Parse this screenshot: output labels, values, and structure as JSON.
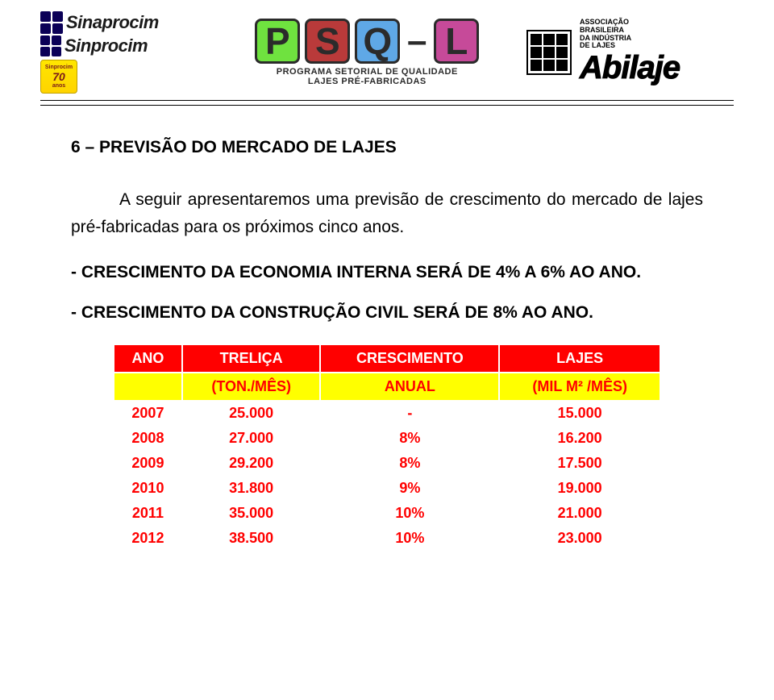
{
  "header": {
    "logos": {
      "sinaprocim": "Sinaprocim",
      "sinprocim": "Sinprocim",
      "anniv_label": "Sinprocim",
      "anniv_years": "70",
      "anniv_sub": "anos",
      "psql_letters": [
        "P",
        "S",
        "Q",
        "L"
      ],
      "psql_letter_colors": [
        "#6fe23f",
        "#b93a3a",
        "#5fa8e6",
        "#c64a99"
      ],
      "psql_sub1": "PROGRAMA SETORIAL DE QUALIDADE",
      "psql_sub2": "LAJES PRÉ-FABRICADAS",
      "abilaje_word": "Abilaje",
      "abilaje_assoc_lines": [
        "ASSOCIAÇÃO",
        "BRASILEIRA",
        "DA INDÚSTRIA",
        "DE LAJES"
      ]
    }
  },
  "section": {
    "title": "6 – PREVISÃO DO MERCADO DE LAJES",
    "paragraph": "A seguir apresentaremos uma previsão de crescimento do mercado de lajes pré-fabricadas para os próximos cinco anos.",
    "bullet1": "- CRESCIMENTO DA ECONOMIA INTERNA SERÁ DE 4% A 6% AO ANO.",
    "bullet2": "- CRESCIMENTO DA CONSTRUÇÃO CIVIL SERÁ DE 8% AO ANO."
  },
  "table": {
    "header_bg": "#ff0000",
    "header_color": "#ffffff",
    "subhead_bg": "#ffff00",
    "subhead_color": "#ff0000",
    "cell_color": "#ff0000",
    "columns_row1": [
      "ANO",
      "TRELIÇA",
      "CRESCIMENTO",
      "LAJES"
    ],
    "columns_row2": [
      "",
      "(TON./MÊS)",
      "ANUAL",
      "(MIL M² /MÊS)"
    ],
    "rows": [
      {
        "year": "2007",
        "trelica": "25.000",
        "cresc": "-",
        "lajes": "15.000"
      },
      {
        "year": "2008",
        "trelica": "27.000",
        "cresc": "8%",
        "lajes": "16.200"
      },
      {
        "year": "2009",
        "trelica": "29.200",
        "cresc": "8%",
        "lajes": "17.500"
      },
      {
        "year": "2010",
        "trelica": "31.800",
        "cresc": "9%",
        "lajes": "19.000"
      },
      {
        "year": "2011",
        "trelica": "35.000",
        "cresc": "10%",
        "lajes": "21.000"
      },
      {
        "year": "2012",
        "trelica": "38.500",
        "cresc": "10%",
        "lajes": "23.000"
      }
    ]
  }
}
